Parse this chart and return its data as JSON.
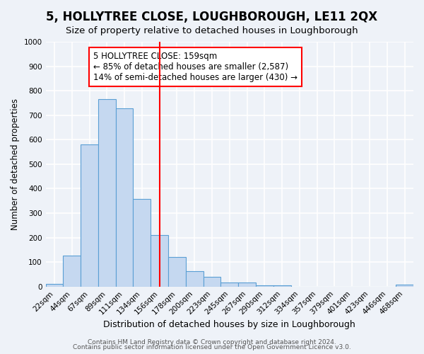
{
  "title": "5, HOLLYTREE CLOSE, LOUGHBOROUGH, LE11 2QX",
  "subtitle": "Size of property relative to detached houses in Loughborough",
  "xlabel": "Distribution of detached houses by size in Loughborough",
  "ylabel": "Number of detached properties",
  "bin_labels": [
    "22sqm",
    "44sqm",
    "67sqm",
    "89sqm",
    "111sqm",
    "134sqm",
    "156sqm",
    "178sqm",
    "200sqm",
    "223sqm",
    "245sqm",
    "267sqm",
    "290sqm",
    "312sqm",
    "334sqm",
    "357sqm",
    "379sqm",
    "401sqm",
    "423sqm",
    "446sqm",
    "468sqm"
  ],
  "bar_heights": [
    10,
    127,
    580,
    765,
    728,
    357,
    210,
    120,
    63,
    40,
    17,
    17,
    5,
    5,
    0,
    0,
    0,
    0,
    0,
    0,
    8
  ],
  "bar_color": "#c5d8f0",
  "bar_edge_color": "#5a9fd4",
  "vline_x_index": 6,
  "vline_color": "red",
  "annotation_line1": "5 HOLLYTREE CLOSE: 159sqm",
  "annotation_line2": "← 85% of detached houses are smaller (2,587)",
  "annotation_line3": "14% of semi-detached houses are larger (430) →",
  "annotation_box_color": "white",
  "annotation_box_edge_color": "red",
  "ylim": [
    0,
    1000
  ],
  "yticks": [
    0,
    100,
    200,
    300,
    400,
    500,
    600,
    700,
    800,
    900,
    1000
  ],
  "footer1": "Contains HM Land Registry data © Crown copyright and database right 2024.",
  "footer2": "Contains public sector information licensed under the Open Government Licence v3.0.",
  "bg_color": "#eef2f8",
  "plot_bg_color": "#eef2f8",
  "grid_color": "white",
  "title_fontsize": 12,
  "subtitle_fontsize": 9.5,
  "xlabel_fontsize": 9,
  "ylabel_fontsize": 8.5,
  "tick_fontsize": 7.5,
  "annotation_fontsize": 8.5,
  "footer_fontsize": 6.5
}
